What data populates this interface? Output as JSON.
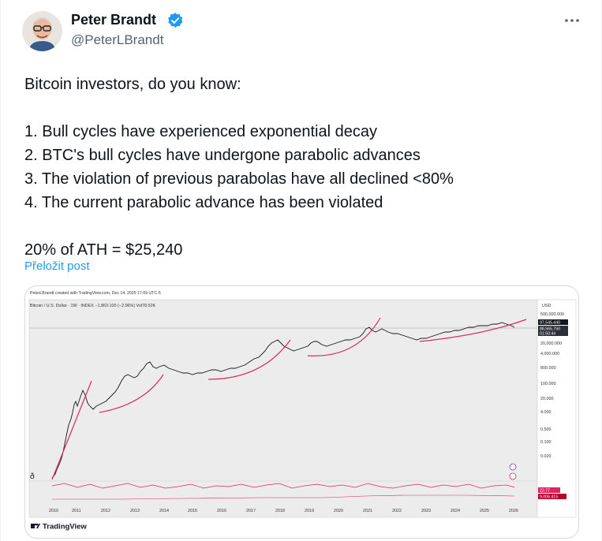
{
  "author": {
    "name": "Peter Brandt",
    "handle": "@PeterLBrandt",
    "verified_icon": "verified-badge-icon",
    "verified_color": "#1d9bf0"
  },
  "more_icon": "more-options-icon",
  "tweet": {
    "intro": "Bitcoin investors, do you know:",
    "points": [
      "1. Bull cycles have experienced exponential decay",
      "2. BTC's bull cycles have undergone parabolic advances",
      "3. The violation of previous parabolas have all declined <80%",
      "4. The current parabolic advance has been violated"
    ],
    "conclusion": "20% of ATH = $25,240",
    "translate_link": "Přeložit post"
  },
  "chart_image": {
    "header_line": "PeterLBrandt created with TradingView.com, Dec 14, 2025 17:09 UTC-5",
    "symbol_line": "Bitcoin / U.S. Dollar · 1W · INDEX  −1,863.100 (−2.06%)  Vol78.52K",
    "currency": "USD",
    "brand": "TradingView",
    "price_labels": [
      "500,000.000",
      "20,000.000",
      "4,000.000",
      "800.000",
      "100.000",
      "20.000",
      "4.000",
      "0.500",
      "0.100",
      "0.020"
    ],
    "price_tags": [
      "97,545.440",
      "88,565.750",
      "01:50:44"
    ],
    "indicator_tags": [
      "22.77",
      "9,006.415"
    ],
    "years": [
      "2010",
      "2011",
      "2012",
      "2013",
      "2014",
      "2015",
      "2016",
      "2017",
      "2018",
      "2019",
      "2020",
      "2021",
      "2022",
      "2023",
      "2024",
      "2025",
      "2026"
    ],
    "price_line_color": "#131722",
    "parabola_color": "#e0245e"
  }
}
